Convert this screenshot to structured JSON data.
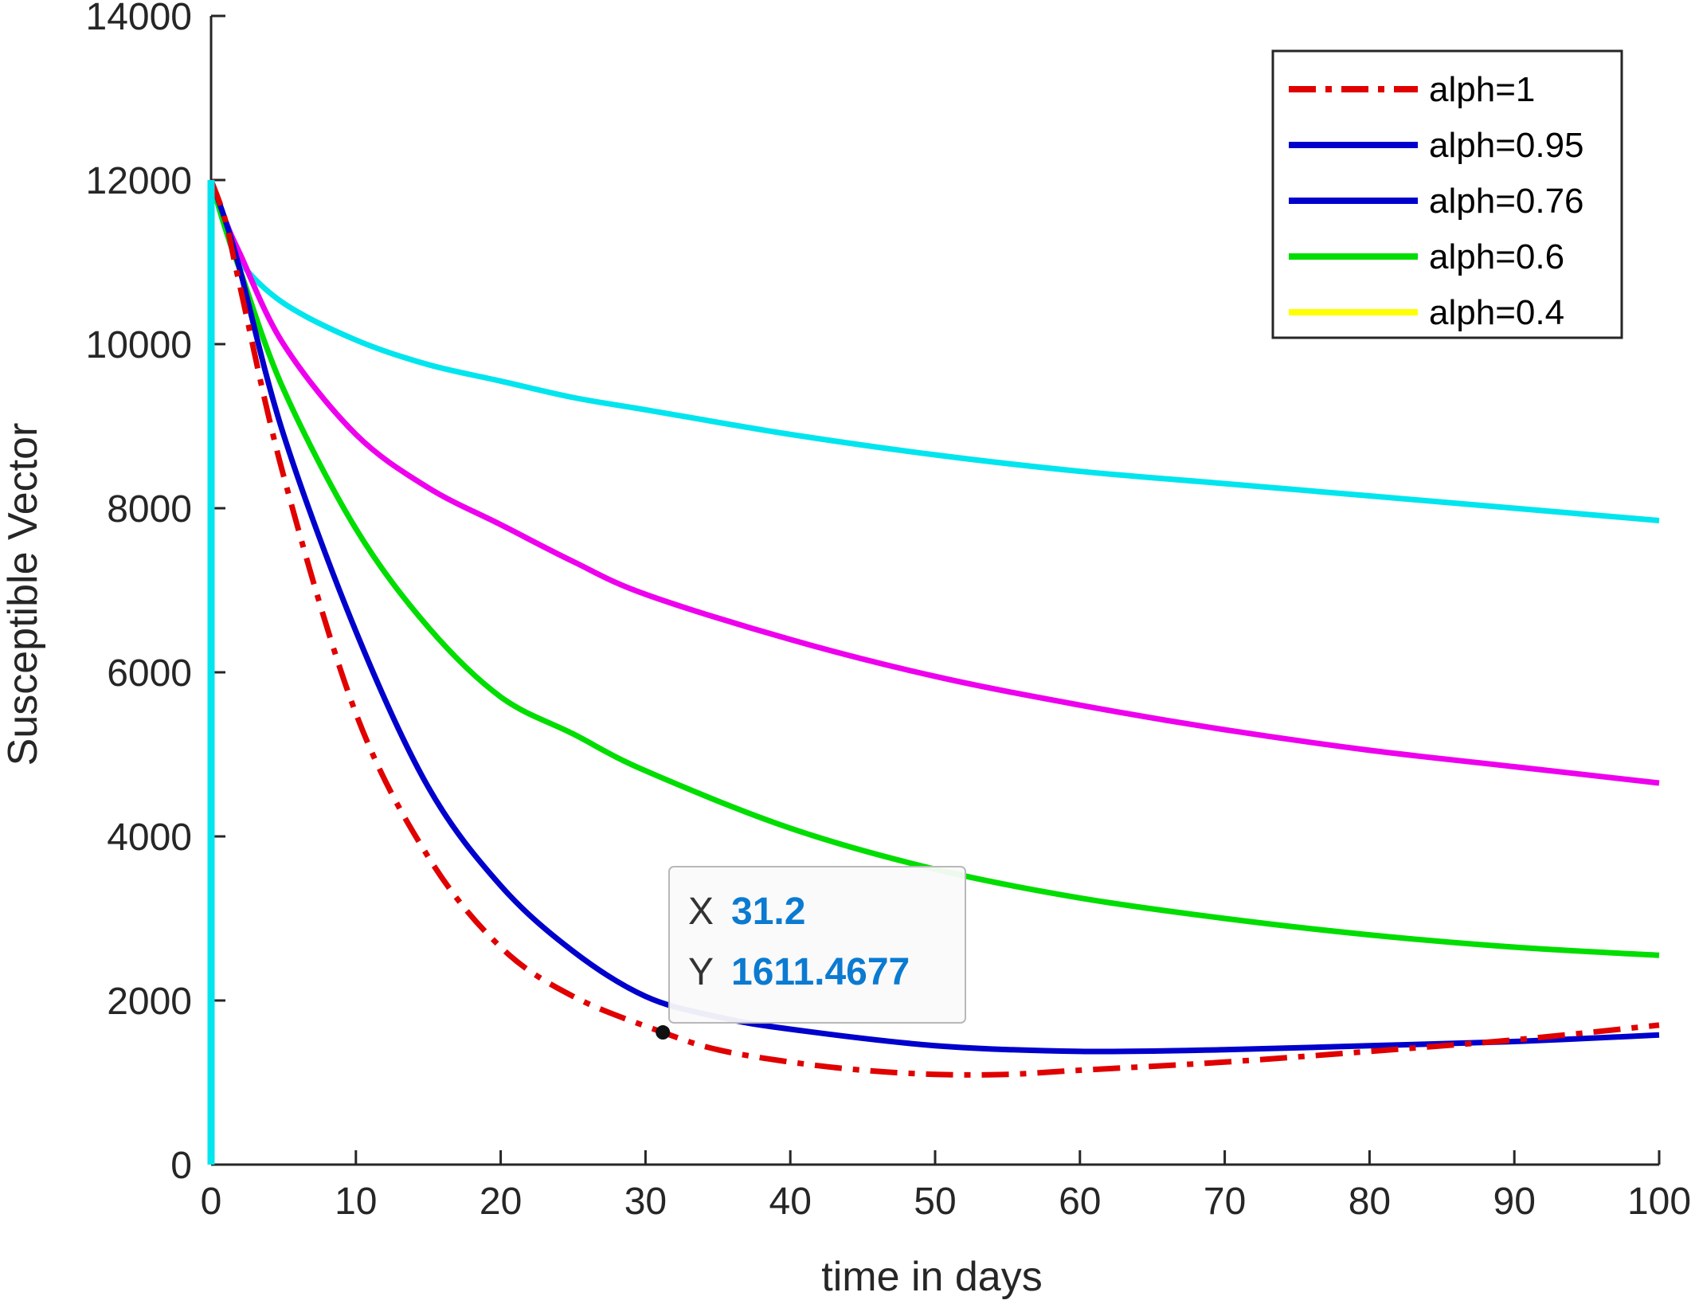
{
  "chart_data": {
    "type": "line",
    "xlabel": "time in days",
    "ylabel": "Susceptible Vector",
    "xlim": [
      0,
      100
    ],
    "ylim": [
      0,
      14000
    ],
    "xticks": [
      "0",
      "10",
      "20",
      "30",
      "40",
      "50",
      "60",
      "70",
      "80",
      "90",
      "100"
    ],
    "yticks": [
      "0",
      "2000",
      "4000",
      "6000",
      "8000",
      "10000",
      "12000",
      "14000"
    ],
    "grid": false,
    "legend_position": "top-right",
    "legend": [
      {
        "label": "alph=1",
        "color": "#e00000",
        "style": "dashdot"
      },
      {
        "label": "alph=0.95",
        "color": "#0000cc",
        "style": "solid"
      },
      {
        "label": "alph=0.76",
        "color": "#0000cc",
        "style": "solid"
      },
      {
        "label": "alph=0.6",
        "color": "#00dd00",
        "style": "solid"
      },
      {
        "label": "alph=0.4",
        "color": "#ffff00",
        "style": "solid"
      }
    ],
    "series": [
      {
        "color": "#00e5ee",
        "style": "solid",
        "x": [
          0,
          1,
          2,
          5,
          10,
          15,
          20,
          25,
          30,
          40,
          50,
          60,
          70,
          80,
          90,
          100
        ],
        "y": [
          12000,
          11400,
          11000,
          10500,
          10050,
          9750,
          9550,
          9350,
          9200,
          8900,
          8650,
          8450,
          8300,
          8150,
          8000,
          7850
        ]
      },
      {
        "color": "#ee00ee",
        "style": "solid",
        "x": [
          0,
          1,
          2,
          5,
          10,
          15,
          20,
          25,
          30,
          40,
          50,
          60,
          70,
          80,
          90,
          100
        ],
        "y": [
          12000,
          11500,
          11100,
          10000,
          8900,
          8250,
          7800,
          7350,
          6950,
          6400,
          5950,
          5600,
          5300,
          5050,
          4850,
          4650
        ]
      },
      {
        "color": "#00dd00",
        "style": "solid",
        "x": [
          0,
          1,
          2,
          5,
          10,
          15,
          20,
          25,
          30,
          40,
          50,
          60,
          70,
          80,
          90,
          100
        ],
        "y": [
          12000,
          11400,
          10900,
          9450,
          7750,
          6550,
          5700,
          5250,
          4800,
          4100,
          3600,
          3250,
          3000,
          2800,
          2650,
          2550
        ]
      },
      {
        "color": "#0000cc",
        "style": "solid",
        "x": [
          0,
          1,
          2,
          5,
          10,
          15,
          20,
          25,
          30,
          35,
          40,
          50,
          60,
          70,
          80,
          90,
          100
        ],
        "y": [
          12000,
          11500,
          10900,
          8900,
          6500,
          4600,
          3400,
          2600,
          2050,
          1800,
          1650,
          1450,
          1380,
          1400,
          1450,
          1500,
          1580
        ]
      },
      {
        "color": "#e00000",
        "style": "dashdot",
        "x": [
          0,
          1,
          2,
          5,
          10,
          15,
          20,
          25,
          31.2,
          35,
          40,
          45,
          50,
          55,
          60,
          70,
          80,
          90,
          100
        ],
        "y": [
          12000,
          11500,
          10700,
          8400,
          5500,
          3750,
          2650,
          2050,
          1611.4677,
          1400,
          1250,
          1150,
          1100,
          1100,
          1150,
          1250,
          1380,
          1520,
          1700
        ]
      }
    ],
    "datatip": {
      "x_key": "X",
      "x_value": "31.2",
      "y_key": "Y",
      "y_value": "1611.4677",
      "point": {
        "x": 31.2,
        "y": 1611.4677
      }
    }
  }
}
